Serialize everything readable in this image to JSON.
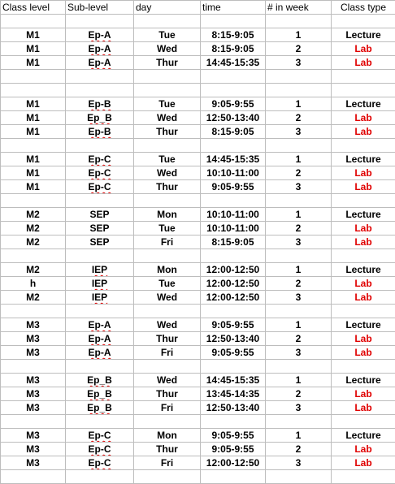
{
  "headers": [
    "Class level",
    "Sub-level",
    "day",
    "time",
    "# in week",
    "Class type"
  ],
  "groups": [
    [
      [
        "M1",
        "Ep-A",
        "Tue",
        "8:15-9:05",
        "1",
        "Lecture"
      ],
      [
        "M1",
        "Ep-A",
        "Wed",
        "8:15-9:05",
        "2",
        "Lab"
      ],
      [
        "M1",
        "Ep-A",
        "Thur",
        "14:45-15:35",
        "3",
        "Lab"
      ]
    ],
    [
      [
        "M1",
        "Ep-B",
        "Tue",
        "9:05-9:55",
        "1",
        "Lecture"
      ],
      [
        "M1",
        "Ep_B",
        "Wed",
        "12:50-13:40",
        "2",
        "Lab"
      ],
      [
        "M1",
        "Ep-B",
        "Thur",
        "8:15-9:05",
        "3",
        "Lab"
      ]
    ],
    [
      [
        "M1",
        "Ep-C",
        "Tue",
        "14:45-15:35",
        "1",
        "Lecture"
      ],
      [
        "M1",
        "Ep-C",
        "Wed",
        "10:10-11:00",
        "2",
        "Lab"
      ],
      [
        "M1",
        "Ep-C",
        "Thur",
        "9:05-9:55",
        "3",
        "Lab"
      ]
    ],
    [
      [
        "M2",
        "SEP",
        "Mon",
        "10:10-11:00",
        "1",
        "Lecture"
      ],
      [
        "M2",
        "SEP",
        "Tue",
        "10:10-11:00",
        "2",
        "Lab"
      ],
      [
        "M2",
        "SEP",
        "Fri",
        "8:15-9:05",
        "3",
        "Lab"
      ]
    ],
    [
      [
        "M2",
        "IEP",
        "Mon",
        "12:00-12:50",
        "1",
        "Lecture"
      ],
      [
        "h",
        "IEP",
        "Tue",
        "12:00-12:50",
        "2",
        "Lab"
      ],
      [
        "M2",
        "IEP",
        "Wed",
        "12:00-12:50",
        "3",
        "Lab"
      ]
    ],
    [
      [
        "M3",
        "Ep-A",
        "Wed",
        "9:05-9:55",
        "1",
        "Lecture"
      ],
      [
        "M3",
        "Ep-A",
        "Thur",
        "12:50-13:40",
        "2",
        "Lab"
      ],
      [
        "M3",
        "Ep-A",
        "Fri",
        "9:05-9:55",
        "3",
        "Lab"
      ]
    ],
    [
      [
        "M3",
        "Ep_B",
        "Wed",
        "14:45-15:35",
        "1",
        "Lecture"
      ],
      [
        "M3",
        "Ep_B",
        "Thur",
        "13:45-14:35",
        "2",
        "Lab"
      ],
      [
        "M3",
        "Ep_B",
        "Fri",
        "12:50-13:40",
        "3",
        "Lab"
      ]
    ],
    [
      [
        "M3",
        "Ep-C",
        "Mon",
        "9:05-9:55",
        "1",
        "Lecture"
      ],
      [
        "M3",
        "Ep-C",
        "Thur",
        "9:05-9:55",
        "2",
        "Lab"
      ],
      [
        "M3",
        "Ep-C",
        "Fri",
        "12:00-12:50",
        "3",
        "Lab"
      ]
    ]
  ],
  "colors": {
    "lab_text": "#e00000",
    "spellcheck_underline": "#e00000",
    "gridline": "#bdbdbd"
  }
}
